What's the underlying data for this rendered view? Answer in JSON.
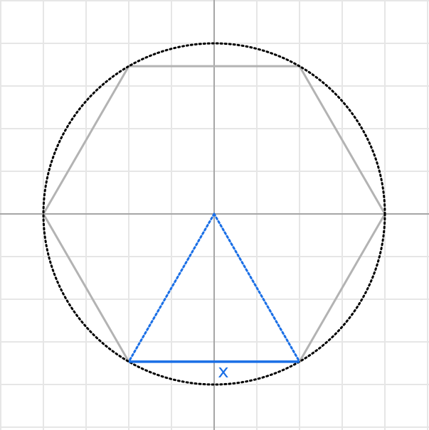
{
  "diagram": {
    "side_label": "x",
    "colors": {
      "background": "#ffffff",
      "grid": "#e6e6e6",
      "axis": "#a6a6a6",
      "hexagon": "#b3b3b3",
      "circle": "#000000",
      "triangle": "#1a6fe6"
    }
  }
}
